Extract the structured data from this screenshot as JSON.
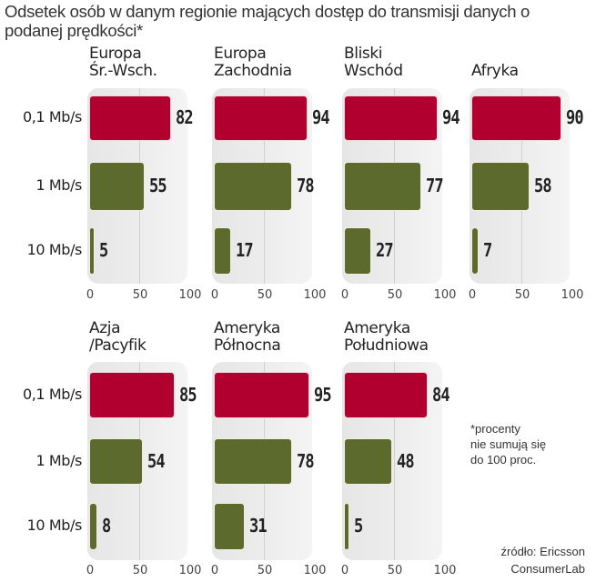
{
  "title": "Odsetek osób w danym regionie mających dostęp do transmisji danych o podanej prędkości*",
  "note": "*procenty\nnie sumują się\ndo 100 proc.",
  "source": "źródło: Ericsson\nConsumerLab",
  "colors": {
    "speed_0_1": "#b1002f",
    "speed_1": "#5d6a2d",
    "speed_10": "#5d6a2d",
    "panel": "#ececec"
  },
  "chart_data": {
    "type": "bar",
    "orientation": "horizontal",
    "title": "Odsetek osób w danym regionie mających dostęp do transmisji danych o podanej prędkości*",
    "categories": [
      "0,1 Mb/s",
      "1 Mb/s",
      "10 Mb/s"
    ],
    "xlim": [
      0,
      100
    ],
    "xticks": [
      "0",
      "50",
      "100"
    ],
    "gridline_at": 50,
    "panels": [
      {
        "region": "Europa\nŚr.-Wsch.",
        "values": [
          82,
          55,
          5
        ]
      },
      {
        "region": "Europa\nZachodnia",
        "values": [
          94,
          78,
          17
        ]
      },
      {
        "region": "Bliski\nWschód",
        "values": [
          94,
          77,
          27
        ]
      },
      {
        "region": "Afryka",
        "values": [
          90,
          58,
          7
        ]
      },
      {
        "region": "Azja\n/Pacyfik",
        "values": [
          85,
          54,
          8
        ]
      },
      {
        "region": "Ameryka\nPółnocna",
        "values": [
          95,
          78,
          31
        ]
      },
      {
        "region": "Ameryka\nPołudniowa",
        "values": [
          84,
          48,
          5
        ]
      }
    ],
    "unit": "%",
    "legend": "none"
  }
}
